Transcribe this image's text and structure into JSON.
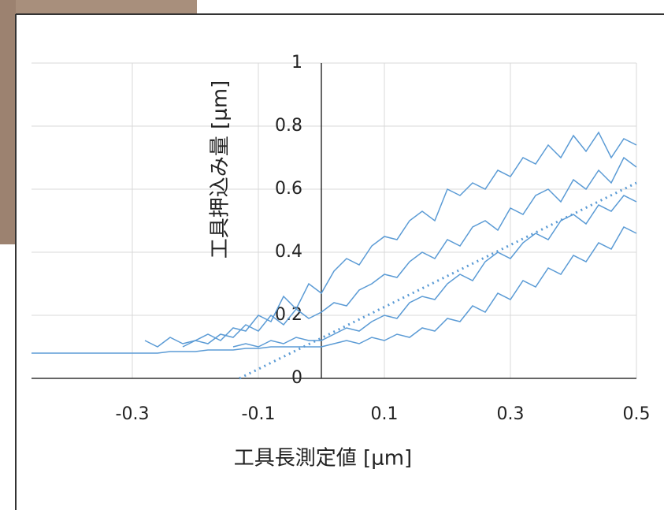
{
  "chart_data": {
    "type": "line",
    "x_label": "工具長測定値 [μm]",
    "y_label": "工具押込み量 [μm]",
    "x": [
      -0.46,
      -0.44,
      -0.42,
      -0.4,
      -0.38,
      -0.36,
      -0.34,
      -0.32,
      -0.3,
      -0.28,
      -0.26,
      -0.24,
      -0.22,
      -0.2,
      -0.18,
      -0.16,
      -0.14,
      -0.12,
      -0.1,
      -0.08,
      -0.06,
      -0.04,
      -0.02,
      0,
      0.02,
      0.04,
      0.06,
      0.08,
      0.1,
      0.12,
      0.14,
      0.16,
      0.18,
      0.2,
      0.22,
      0.24,
      0.26,
      0.28,
      0.3,
      0.32,
      0.34,
      0.36,
      0.38,
      0.4,
      0.42,
      0.44,
      0.46,
      0.48,
      0.5
    ],
    "series": [
      {
        "color": "#5b9bd5",
        "values": [
          null,
          null,
          null,
          null,
          null,
          null,
          null,
          null,
          null,
          0.12,
          0.1,
          0.13,
          0.11,
          0.12,
          0.14,
          0.12,
          0.16,
          0.15,
          0.2,
          0.18,
          0.26,
          0.22,
          0.3,
          0.27,
          0.34,
          0.38,
          0.36,
          0.42,
          0.45,
          0.44,
          0.5,
          0.53,
          0.5,
          0.6,
          0.58,
          0.62,
          0.6,
          0.66,
          0.64,
          0.7,
          0.68,
          0.74,
          0.7,
          0.77,
          0.72,
          0.78,
          0.7,
          0.76,
          0.74
        ]
      },
      {
        "color": "#5b9bd5",
        "values": [
          null,
          null,
          null,
          null,
          null,
          null,
          null,
          null,
          null,
          null,
          null,
          null,
          0.1,
          0.12,
          0.11,
          0.14,
          0.13,
          0.17,
          0.15,
          0.2,
          0.17,
          0.22,
          0.19,
          0.21,
          0.24,
          0.23,
          0.28,
          0.3,
          0.33,
          0.32,
          0.37,
          0.4,
          0.38,
          0.44,
          0.42,
          0.48,
          0.5,
          0.47,
          0.54,
          0.52,
          0.58,
          0.6,
          0.56,
          0.63,
          0.6,
          0.66,
          0.62,
          0.7,
          0.67
        ]
      },
      {
        "color": "#5b9bd5",
        "values": [
          null,
          null,
          null,
          null,
          null,
          null,
          null,
          null,
          null,
          null,
          null,
          null,
          null,
          null,
          null,
          null,
          0.1,
          0.11,
          0.1,
          0.12,
          0.11,
          0.13,
          0.12,
          0.12,
          0.14,
          0.16,
          0.15,
          0.18,
          0.2,
          0.19,
          0.24,
          0.26,
          0.25,
          0.3,
          0.33,
          0.31,
          0.37,
          0.4,
          0.38,
          0.43,
          0.46,
          0.44,
          0.5,
          0.52,
          0.49,
          0.55,
          0.53,
          0.58,
          0.56
        ]
      },
      {
        "color": "#5b9bd5",
        "values": [
          0.08,
          0.08,
          0.08,
          0.08,
          0.08,
          0.08,
          0.08,
          0.08,
          0.08,
          0.08,
          0.08,
          0.085,
          0.085,
          0.085,
          0.09,
          0.09,
          0.09,
          0.095,
          0.095,
          0.1,
          0.1,
          0.1,
          0.1,
          0.1,
          0.11,
          0.12,
          0.11,
          0.13,
          0.12,
          0.14,
          0.13,
          0.16,
          0.15,
          0.19,
          0.18,
          0.23,
          0.21,
          0.27,
          0.25,
          0.31,
          0.29,
          0.35,
          0.33,
          0.39,
          0.37,
          0.43,
          0.41,
          0.48,
          0.46
        ]
      },
      {
        "color": "#5b9bd5",
        "dotted": true,
        "x": [
          -0.13,
          0.5
        ],
        "values": [
          0,
          0.62
        ]
      }
    ],
    "xlim": [
      -0.46,
      0.5
    ],
    "ylim": [
      0,
      1
    ],
    "xticks": [
      -0.3,
      -0.1,
      0.1,
      0.3,
      0.5
    ],
    "yticks": [
      0,
      0.2,
      0.4,
      0.6,
      0.8,
      1
    ],
    "grid": true
  }
}
